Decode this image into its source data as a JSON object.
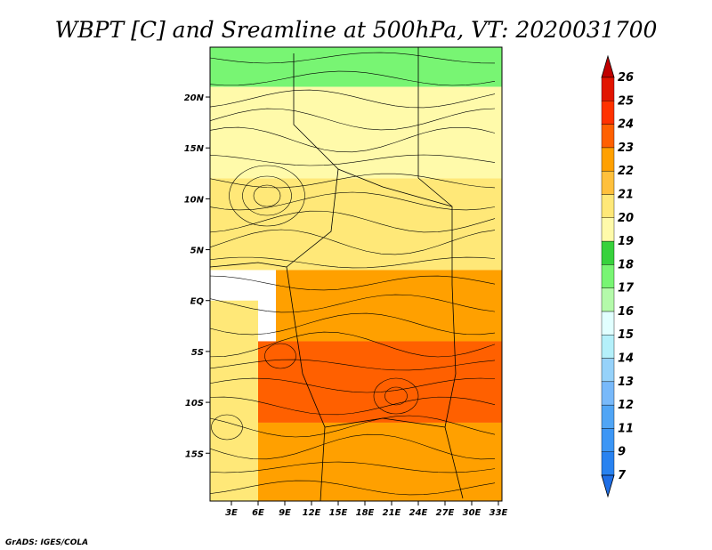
{
  "chart_data": {
    "type": "heatmap",
    "title": "WBPT [C] and Sreamline at 500hPa, VT: 2020031700",
    "xlabel": "",
    "ylabel": "",
    "x_ticks": [
      "3E",
      "6E",
      "9E",
      "12E",
      "15E",
      "18E",
      "21E",
      "24E",
      "27E",
      "30E",
      "33E"
    ],
    "x_tick_values": [
      3,
      6,
      9,
      12,
      15,
      18,
      21,
      24,
      27,
      30,
      33
    ],
    "y_ticks": [
      "20N",
      "15N",
      "10N",
      "5N",
      "EQ",
      "5S",
      "10S",
      "15S"
    ],
    "y_tick_values": [
      20,
      15,
      10,
      5,
      0,
      -5,
      -10,
      -15
    ],
    "xlim": [
      0.6,
      33.4
    ],
    "ylim": [
      -19.7,
      24.9
    ],
    "colorbar": {
      "labels": [
        "7",
        "9",
        "11",
        "12",
        "13",
        "14",
        "15",
        "16",
        "17",
        "18",
        "19",
        "20",
        "21",
        "22",
        "23",
        "24",
        "25",
        "26"
      ],
      "colors": [
        "#1e6ee6",
        "#2882f0",
        "#3c96f5",
        "#50a5f5",
        "#78b9fa",
        "#96d2fa",
        "#b4f0fa",
        "#e1ffff",
        "#b4faaa",
        "#78f573",
        "#37d23c",
        "#fffaaa",
        "#ffe878",
        "#ffc03c",
        "#ffa000",
        "#ff6000",
        "#ff3200",
        "#e11400",
        "#c00000"
      ],
      "extends": "both"
    },
    "field_description_regions": [
      {
        "value": 17,
        "lat_range": [
          21,
          24.9
        ],
        "lon_range": [
          0.6,
          33.4
        ]
      },
      {
        "value": 19,
        "lat_range": [
          12,
          21
        ],
        "lon_range": [
          0.6,
          33.4
        ]
      },
      {
        "value": 20,
        "lat_range": [
          3,
          12
        ],
        "lon_range": [
          0.6,
          33.4
        ]
      },
      {
        "value": 22,
        "lat_range": [
          -4,
          3
        ],
        "lon_range": [
          8,
          33.4
        ]
      },
      {
        "value": 23,
        "lat_range": [
          -12,
          -4
        ],
        "lon_range": [
          6,
          33.4
        ]
      },
      {
        "value": 22,
        "lat_range": [
          -19.7,
          -12
        ],
        "lon_range": [
          6,
          33.4
        ]
      },
      {
        "value": 20,
        "lat_range": [
          -19.7,
          0
        ],
        "lon_range": [
          0.6,
          6
        ]
      }
    ]
  },
  "footer": "GrADS: IGES/COLA"
}
